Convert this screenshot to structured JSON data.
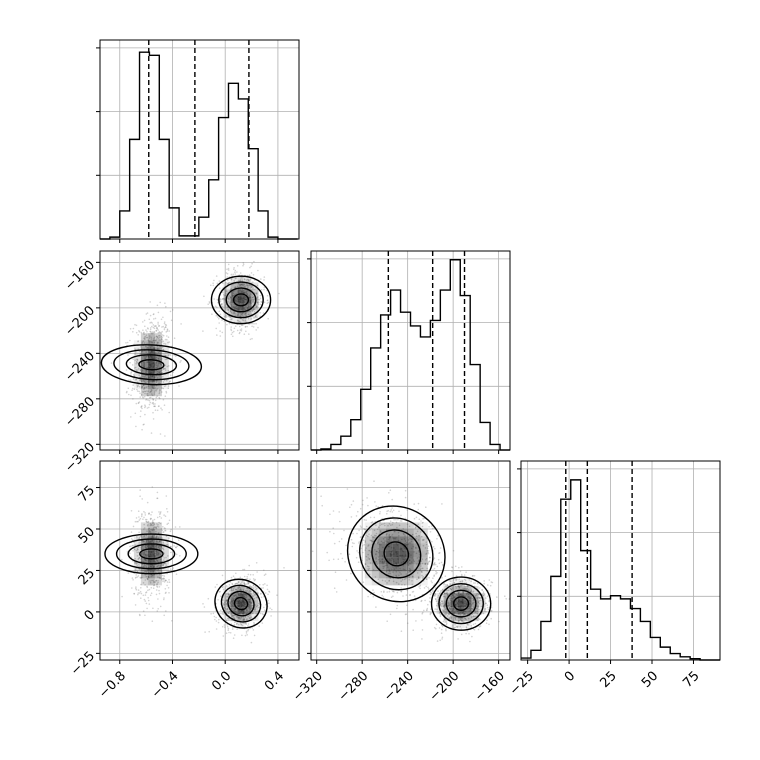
{
  "chart_data": {
    "type": "corner",
    "grid": true,
    "colors": {
      "line": "#000000",
      "grid": "#b0b0b0",
      "points": "#808080",
      "density": "#000000"
    },
    "parameters": [
      {
        "id": "p0",
        "lim": [
          -0.95,
          0.56
        ],
        "ticks": [
          -0.8,
          -0.4,
          0.0,
          0.4
        ],
        "tick_labels": [
          "−0.8",
          "−0.4",
          "0.0",
          "0.4"
        ]
      },
      {
        "id": "p1",
        "lim": [
          -325,
          -150
        ],
        "ticks": [
          -320,
          -280,
          -240,
          -200,
          -160
        ],
        "tick_labels": [
          "−320",
          "−280",
          "−240",
          "−200",
          "−160"
        ]
      },
      {
        "id": "p2",
        "lim": [
          -29,
          91
        ],
        "ticks": [
          -25,
          0,
          25,
          50,
          75
        ],
        "tick_labels": [
          "−25",
          "0",
          "25",
          "50",
          "75"
        ]
      }
    ],
    "histograms": [
      {
        "param": "p0",
        "bin_edges": [
          -0.95,
          -0.875,
          -0.8,
          -0.725,
          -0.65,
          -0.575,
          -0.5,
          -0.425,
          -0.35,
          -0.275,
          -0.2,
          -0.125,
          -0.05,
          0.025,
          0.1,
          0.175,
          0.25,
          0.325,
          0.4,
          0.475,
          0.55
        ],
        "counts": [
          0,
          3,
          45,
          160,
          300,
          295,
          160,
          50,
          5,
          5,
          35,
          95,
          195,
          250,
          225,
          145,
          45,
          3,
          0,
          0
        ],
        "ymax": 310,
        "quantiles": [
          -0.58,
          -0.23,
          0.18
        ]
      },
      {
        "param": "p1",
        "bin_edges": [
          -325,
          -316.25,
          -307.5,
          -298.75,
          -290,
          -281.25,
          -272.5,
          -263.75,
          -255,
          -246.25,
          -237.5,
          -228.75,
          -220,
          -211.25,
          -202.5,
          -193.75,
          -185,
          -176.25,
          -167.5,
          -158.75,
          -150
        ],
        "counts": [
          0,
          2,
          10,
          25,
          55,
          110,
          185,
          245,
          290,
          250,
          225,
          205,
          235,
          290,
          345,
          280,
          155,
          50,
          10,
          0
        ],
        "ymax": 350,
        "quantiles": [
          -257,
          -218,
          -190
        ]
      },
      {
        "param": "p2",
        "bin_edges": [
          -29,
          -23,
          -17,
          -11,
          -5,
          1,
          7,
          13,
          19,
          25,
          31,
          37,
          43,
          49,
          55,
          61,
          67,
          73,
          79,
          85,
          91
        ],
        "counts": [
          3,
          15,
          60,
          130,
          250,
          280,
          170,
          110,
          95,
          100,
          95,
          80,
          60,
          35,
          20,
          10,
          5,
          2,
          0,
          0
        ],
        "ymax": 300,
        "quantiles": [
          -2,
          11,
          38
        ]
      }
    ],
    "pair_plots": [
      {
        "x": "p0",
        "y": "p1",
        "modes": [
          {
            "cx": -0.56,
            "cy": -250,
            "sx": 0.075,
            "sy": 22,
            "rho": 0.1,
            "weight": 0.5
          },
          {
            "cx": 0.12,
            "cy": -193,
            "sx": 0.09,
            "sy": 13,
            "rho": 0.0,
            "weight": 0.5
          }
        ]
      },
      {
        "x": "p0",
        "y": "p2",
        "modes": [
          {
            "cx": -0.56,
            "cy": 35,
            "sx": 0.075,
            "sy": 14,
            "rho": 0.0,
            "weight": 0.5
          },
          {
            "cx": 0.12,
            "cy": 5,
            "sx": 0.09,
            "sy": 8,
            "rho": 0.15,
            "weight": 0.5
          }
        ]
      },
      {
        "x": "p1",
        "y": "p2",
        "modes": [
          {
            "cx": -250,
            "cy": 35,
            "sx": 22,
            "sy": 14,
            "rho": -0.3,
            "weight": 0.5
          },
          {
            "cx": -193,
            "cy": 5,
            "sx": 13,
            "sy": 8,
            "rho": 0.0,
            "weight": 0.5
          }
        ]
      }
    ],
    "contour_levels_sigma": [
      0.5,
      1.0,
      1.5,
      2.0
    ]
  }
}
